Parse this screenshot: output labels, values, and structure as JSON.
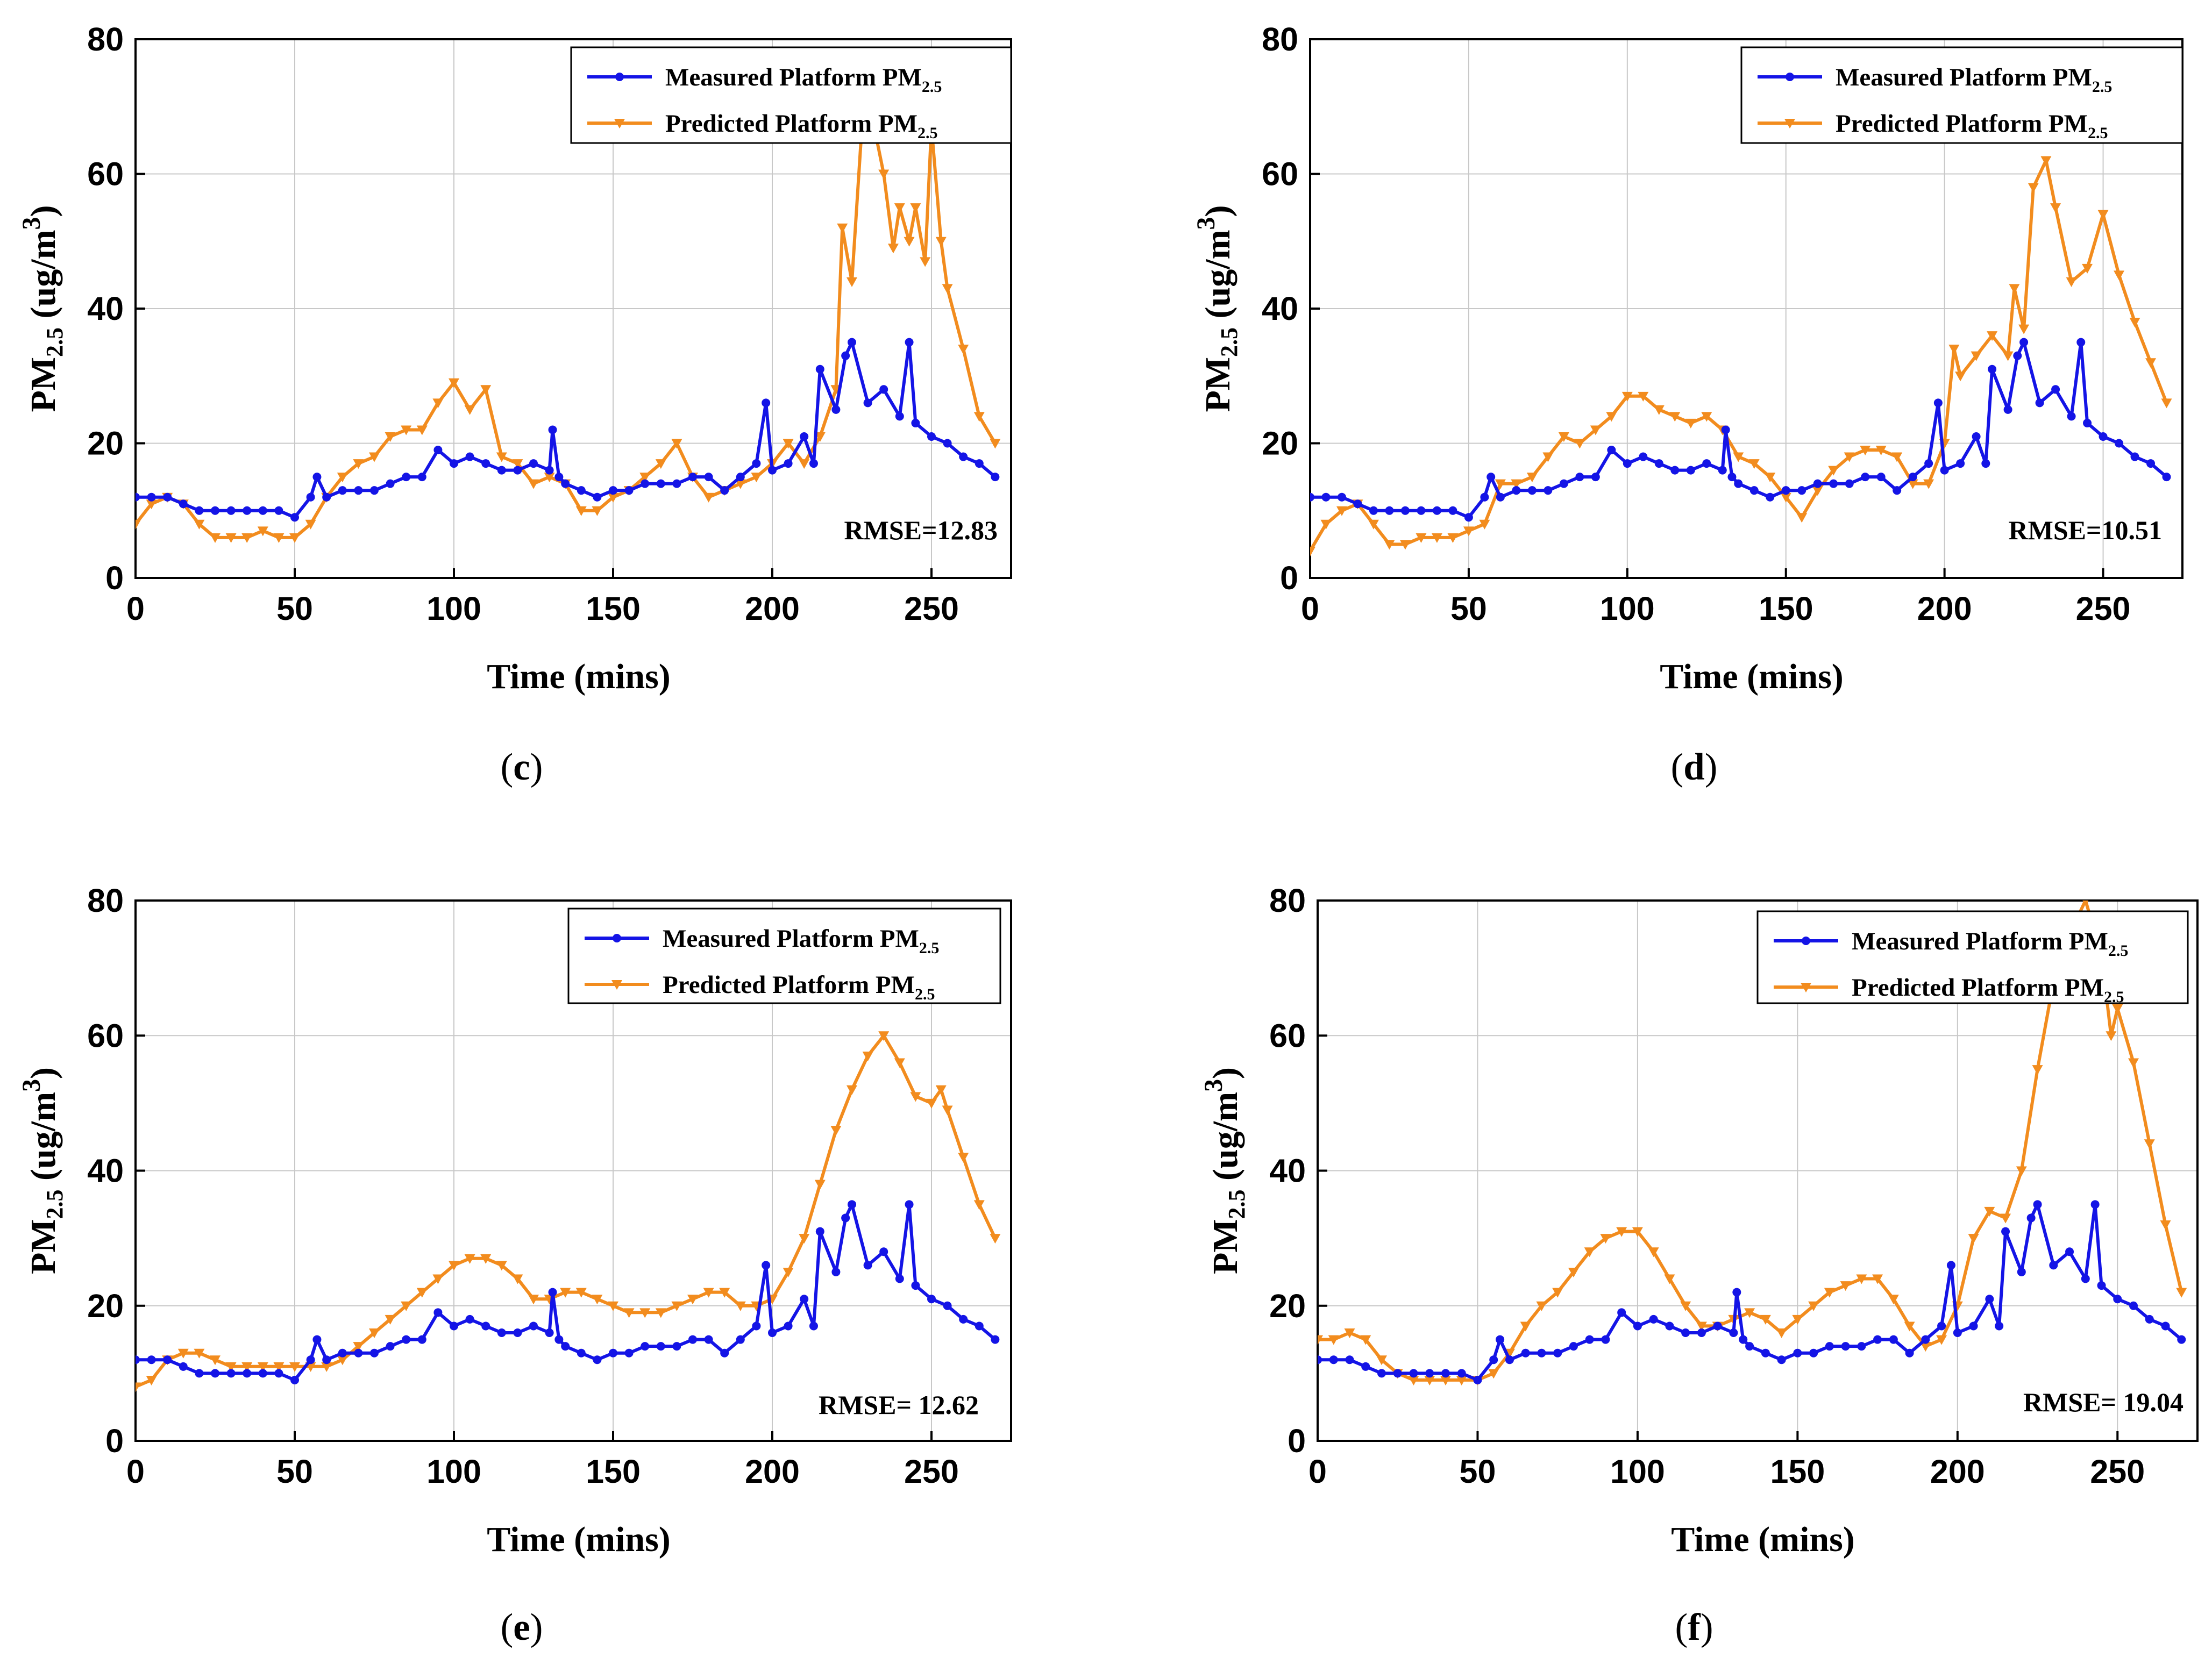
{
  "chart_data": [
    {
      "type": "line",
      "panel": "(c)",
      "xlabel": "Time (mins)",
      "ylabel": "PM2.5 (ug/m3)",
      "xlim": [
        0,
        275
      ],
      "ylim": [
        0,
        80
      ],
      "xticks": [
        0,
        50,
        100,
        150,
        200,
        250
      ],
      "yticks": [
        0,
        20,
        40,
        60,
        80
      ],
      "grid": true,
      "legend": "top-right",
      "annotation": "RMSE=12.83",
      "series": [
        {
          "name": "Measured Platform PM2.5",
          "color": "#1414e6",
          "marker": "circle",
          "x": [
            0,
            5,
            10,
            15,
            20,
            25,
            30,
            35,
            40,
            45,
            50,
            55,
            57,
            60,
            65,
            70,
            75,
            80,
            85,
            90,
            95,
            100,
            105,
            110,
            115,
            120,
            125,
            130,
            131,
            133,
            135,
            140,
            145,
            150,
            155,
            160,
            165,
            170,
            175,
            180,
            185,
            190,
            195,
            198,
            200,
            205,
            210,
            213,
            215,
            220,
            223,
            225,
            230,
            235,
            240,
            243,
            245,
            250,
            255,
            260,
            265,
            270
          ],
          "y": [
            12,
            12,
            12,
            11,
            10,
            10,
            10,
            10,
            10,
            10,
            9,
            12,
            15,
            12,
            13,
            13,
            13,
            14,
            15,
            15,
            19,
            17,
            18,
            17,
            16,
            16,
            17,
            16,
            22,
            15,
            14,
            13,
            12,
            13,
            13,
            14,
            14,
            14,
            15,
            15,
            13,
            15,
            17,
            26,
            16,
            17,
            21,
            17,
            31,
            25,
            33,
            35,
            26,
            28,
            24,
            35,
            23,
            21,
            20,
            18,
            17,
            15
          ]
        },
        {
          "name": "Predicted Platform PM2.5",
          "color": "#f28c1e",
          "marker": "triangle-down",
          "x": [
            0,
            5,
            10,
            15,
            20,
            25,
            30,
            35,
            40,
            45,
            50,
            55,
            60,
            65,
            70,
            75,
            80,
            85,
            90,
            95,
            100,
            105,
            110,
            115,
            120,
            125,
            130,
            135,
            140,
            145,
            150,
            155,
            160,
            165,
            170,
            175,
            180,
            185,
            190,
            195,
            200,
            205,
            210,
            215,
            220,
            222,
            225,
            228,
            232,
            235,
            238,
            240,
            243,
            245,
            248,
            250,
            253,
            255,
            260,
            265,
            270
          ],
          "y": [
            8,
            11,
            12,
            11,
            8,
            6,
            6,
            6,
            7,
            6,
            6,
            8,
            12,
            15,
            17,
            18,
            21,
            22,
            22,
            26,
            29,
            25,
            28,
            18,
            17,
            14,
            15,
            14,
            10,
            10,
            12,
            13,
            15,
            17,
            20,
            15,
            12,
            13,
            14,
            15,
            17,
            20,
            17,
            21,
            28,
            52,
            44,
            66,
            67,
            60,
            49,
            55,
            50,
            55,
            47,
            67,
            50,
            43,
            34,
            24,
            20
          ]
        }
      ]
    },
    {
      "type": "line",
      "panel": "(d)",
      "xlabel": "Time (mins)",
      "ylabel": "PM2.5 (ug/m3)",
      "xlim": [
        0,
        275
      ],
      "ylim": [
        0,
        80
      ],
      "xticks": [
        0,
        50,
        100,
        150,
        200,
        250
      ],
      "yticks": [
        0,
        20,
        40,
        60,
        80
      ],
      "grid": true,
      "legend": "top-right",
      "annotation": "RMSE=10.51",
      "series": [
        {
          "name": "Measured Platform PM2.5",
          "color": "#1414e6",
          "marker": "circle",
          "x": [
            0,
            5,
            10,
            15,
            20,
            25,
            30,
            35,
            40,
            45,
            50,
            55,
            57,
            60,
            65,
            70,
            75,
            80,
            85,
            90,
            95,
            100,
            105,
            110,
            115,
            120,
            125,
            130,
            131,
            133,
            135,
            140,
            145,
            150,
            155,
            160,
            165,
            170,
            175,
            180,
            185,
            190,
            195,
            198,
            200,
            205,
            210,
            213,
            215,
            220,
            223,
            225,
            230,
            235,
            240,
            243,
            245,
            250,
            255,
            260,
            265,
            270
          ],
          "y": [
            12,
            12,
            12,
            11,
            10,
            10,
            10,
            10,
            10,
            10,
            9,
            12,
            15,
            12,
            13,
            13,
            13,
            14,
            15,
            15,
            19,
            17,
            18,
            17,
            16,
            16,
            17,
            16,
            22,
            15,
            14,
            13,
            12,
            13,
            13,
            14,
            14,
            14,
            15,
            15,
            13,
            15,
            17,
            26,
            16,
            17,
            21,
            17,
            31,
            25,
            33,
            35,
            26,
            28,
            24,
            35,
            23,
            21,
            20,
            18,
            17,
            15
          ]
        },
        {
          "name": "Predicted Platform PM2.5",
          "color": "#f28c1e",
          "marker": "triangle-down",
          "x": [
            0,
            5,
            10,
            15,
            20,
            25,
            30,
            35,
            40,
            45,
            50,
            55,
            60,
            65,
            70,
            75,
            80,
            85,
            90,
            95,
            100,
            105,
            110,
            115,
            120,
            125,
            130,
            135,
            140,
            145,
            150,
            155,
            160,
            165,
            170,
            175,
            180,
            185,
            190,
            195,
            200,
            203,
            205,
            210,
            215,
            220,
            222,
            225,
            228,
            232,
            235,
            240,
            245,
            250,
            255,
            260,
            265,
            270
          ],
          "y": [
            4,
            8,
            10,
            11,
            8,
            5,
            5,
            6,
            6,
            6,
            7,
            8,
            14,
            14,
            15,
            18,
            21,
            20,
            22,
            24,
            27,
            27,
            25,
            24,
            23,
            24,
            22,
            18,
            17,
            15,
            12,
            9,
            13,
            16,
            18,
            19,
            19,
            18,
            14,
            14,
            20,
            34,
            30,
            33,
            36,
            33,
            43,
            37,
            58,
            62,
            55,
            44,
            46,
            54,
            45,
            38,
            32,
            26
          ]
        }
      ]
    },
    {
      "type": "line",
      "panel": "(e)",
      "xlabel": "Time (mins)",
      "ylabel": "PM2.5 (ug/m3)",
      "xlim": [
        0,
        275
      ],
      "ylim": [
        0,
        80
      ],
      "xticks": [
        0,
        50,
        100,
        150,
        200,
        250
      ],
      "yticks": [
        0,
        20,
        40,
        60,
        80
      ],
      "grid": true,
      "legend": "top-right",
      "annotation": "RMSE= 12.62",
      "series": [
        {
          "name": "Measured Platform PM2.5",
          "color": "#1414e6",
          "marker": "circle",
          "x": [
            0,
            5,
            10,
            15,
            20,
            25,
            30,
            35,
            40,
            45,
            50,
            55,
            57,
            60,
            65,
            70,
            75,
            80,
            85,
            90,
            95,
            100,
            105,
            110,
            115,
            120,
            125,
            130,
            131,
            133,
            135,
            140,
            145,
            150,
            155,
            160,
            165,
            170,
            175,
            180,
            185,
            190,
            195,
            198,
            200,
            205,
            210,
            213,
            215,
            220,
            223,
            225,
            230,
            235,
            240,
            243,
            245,
            250,
            255,
            260,
            265,
            270
          ],
          "y": [
            12,
            12,
            12,
            11,
            10,
            10,
            10,
            10,
            10,
            10,
            9,
            12,
            15,
            12,
            13,
            13,
            13,
            14,
            15,
            15,
            19,
            17,
            18,
            17,
            16,
            16,
            17,
            16,
            22,
            15,
            14,
            13,
            12,
            13,
            13,
            14,
            14,
            14,
            15,
            15,
            13,
            15,
            17,
            26,
            16,
            17,
            21,
            17,
            31,
            25,
            33,
            35,
            26,
            28,
            24,
            35,
            23,
            21,
            20,
            18,
            17,
            15
          ]
        },
        {
          "name": "Predicted Platform PM2.5",
          "color": "#f28c1e",
          "marker": "triangle-down",
          "x": [
            0,
            5,
            10,
            15,
            20,
            25,
            30,
            35,
            40,
            45,
            50,
            55,
            60,
            65,
            70,
            75,
            80,
            85,
            90,
            95,
            100,
            105,
            110,
            115,
            120,
            125,
            130,
            135,
            140,
            145,
            150,
            155,
            160,
            165,
            170,
            175,
            180,
            185,
            190,
            195,
            200,
            205,
            210,
            215,
            220,
            225,
            230,
            235,
            240,
            245,
            250,
            253,
            255,
            260,
            265,
            270
          ],
          "y": [
            8,
            9,
            12,
            13,
            13,
            12,
            11,
            11,
            11,
            11,
            11,
            11,
            11,
            12,
            14,
            16,
            18,
            20,
            22,
            24,
            26,
            27,
            27,
            26,
            24,
            21,
            21,
            22,
            22,
            21,
            20,
            19,
            19,
            19,
            20,
            21,
            22,
            22,
            20,
            20,
            21,
            25,
            30,
            38,
            46,
            52,
            57,
            60,
            56,
            51,
            50,
            52,
            49,
            42,
            35,
            30
          ]
        }
      ]
    },
    {
      "type": "line",
      "panel": "(f)",
      "xlabel": "Time (mins)",
      "ylabel": "PM2.5 (ug/m3)",
      "xlim": [
        0,
        275
      ],
      "ylim": [
        0,
        80
      ],
      "xticks": [
        0,
        50,
        100,
        150,
        200,
        250
      ],
      "yticks": [
        0,
        20,
        40,
        60,
        80
      ],
      "grid": true,
      "legend": "top-right",
      "annotation": "RMSE= 19.04",
      "series": [
        {
          "name": "Measured Platform PM2.5",
          "color": "#1414e6",
          "marker": "circle",
          "x": [
            0,
            5,
            10,
            15,
            20,
            25,
            30,
            35,
            40,
            45,
            50,
            55,
            57,
            60,
            65,
            70,
            75,
            80,
            85,
            90,
            95,
            100,
            105,
            110,
            115,
            120,
            125,
            130,
            131,
            133,
            135,
            140,
            145,
            150,
            155,
            160,
            165,
            170,
            175,
            180,
            185,
            190,
            195,
            198,
            200,
            205,
            210,
            213,
            215,
            220,
            223,
            225,
            230,
            235,
            240,
            243,
            245,
            250,
            255,
            260,
            265,
            270
          ],
          "y": [
            12,
            12,
            12,
            11,
            10,
            10,
            10,
            10,
            10,
            10,
            9,
            12,
            15,
            12,
            13,
            13,
            13,
            14,
            15,
            15,
            19,
            17,
            18,
            17,
            16,
            16,
            17,
            16,
            22,
            15,
            14,
            13,
            12,
            13,
            13,
            14,
            14,
            14,
            15,
            15,
            13,
            15,
            17,
            26,
            16,
            17,
            21,
            17,
            31,
            25,
            33,
            35,
            26,
            28,
            24,
            35,
            23,
            21,
            20,
            18,
            17,
            15
          ]
        },
        {
          "name": "Predicted Platform PM2.5",
          "color": "#f28c1e",
          "marker": "triangle-down",
          "x": [
            0,
            5,
            10,
            15,
            20,
            25,
            30,
            35,
            40,
            45,
            50,
            55,
            60,
            65,
            70,
            75,
            80,
            85,
            90,
            95,
            100,
            105,
            110,
            115,
            120,
            125,
            130,
            135,
            140,
            145,
            150,
            155,
            160,
            165,
            170,
            175,
            180,
            185,
            190,
            195,
            200,
            205,
            210,
            215,
            220,
            225,
            230,
            235,
            240,
            245,
            248,
            250,
            255,
            260,
            265,
            270
          ],
          "y": [
            15,
            15,
            16,
            15,
            12,
            10,
            9,
            9,
            9,
            9,
            9,
            10,
            13,
            17,
            20,
            22,
            25,
            28,
            30,
            31,
            31,
            28,
            24,
            20,
            17,
            17,
            18,
            19,
            18,
            16,
            18,
            20,
            22,
            23,
            24,
            24,
            21,
            17,
            14,
            15,
            20,
            30,
            34,
            33,
            40,
            55,
            68,
            75,
            80,
            72,
            60,
            64,
            56,
            44,
            32,
            22
          ]
        }
      ]
    }
  ],
  "panel_labels": [
    "(c)",
    "(d)",
    "(e)",
    "(f)"
  ]
}
